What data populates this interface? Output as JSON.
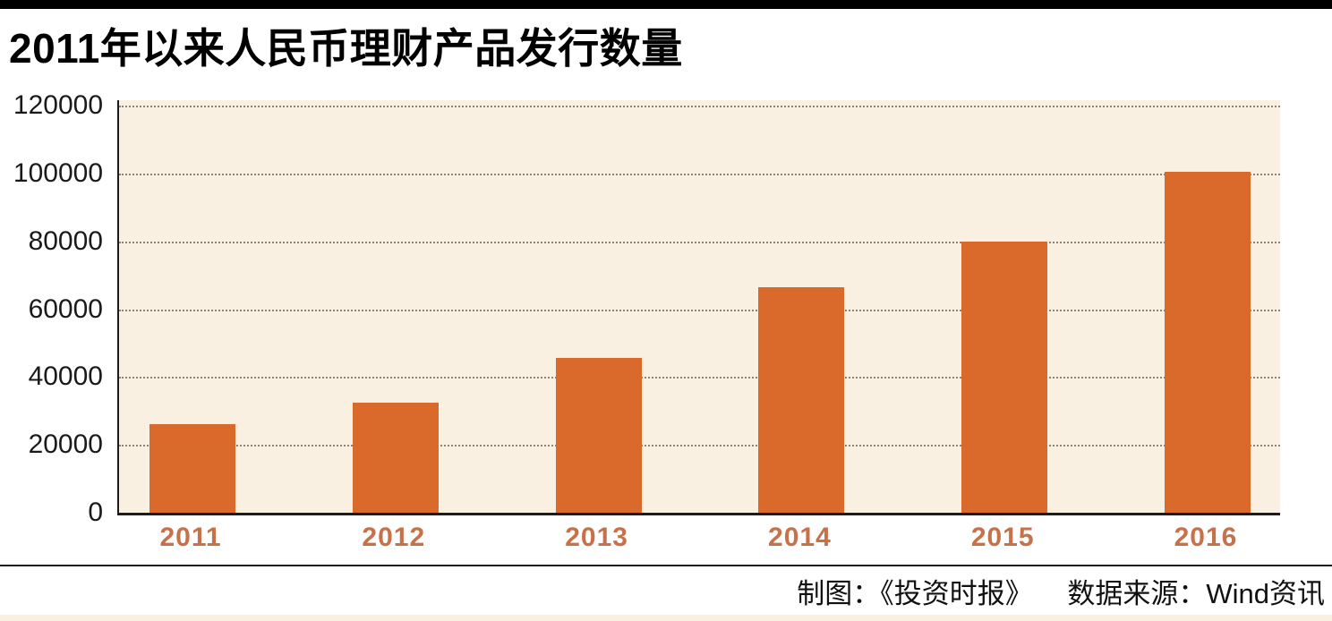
{
  "header": {
    "title": "2011年以来人民币理财产品发行数量"
  },
  "chart_data": {
    "type": "bar",
    "title": "2011年以来人民币理财产品发行数量",
    "categories": [
      "2011",
      "2012",
      "2013",
      "2014",
      "2015",
      "2016"
    ],
    "values": [
      26000,
      32500,
      45500,
      66500,
      80000,
      100500
    ],
    "xlabel": "",
    "ylabel": "",
    "ylim": [
      0,
      120000
    ],
    "yticks": [
      0,
      20000,
      40000,
      60000,
      80000,
      100000,
      120000
    ],
    "grid": "horizontal-dotted",
    "legend": "none",
    "bar_color": "#d96a2c",
    "plot_bg": "#faf0e2",
    "xtick_color": "#c7714a",
    "ytick_color": "#1a1a1a"
  },
  "footer": {
    "credit": "制图：《投资时报》",
    "source": "数据来源：Wind资讯"
  }
}
